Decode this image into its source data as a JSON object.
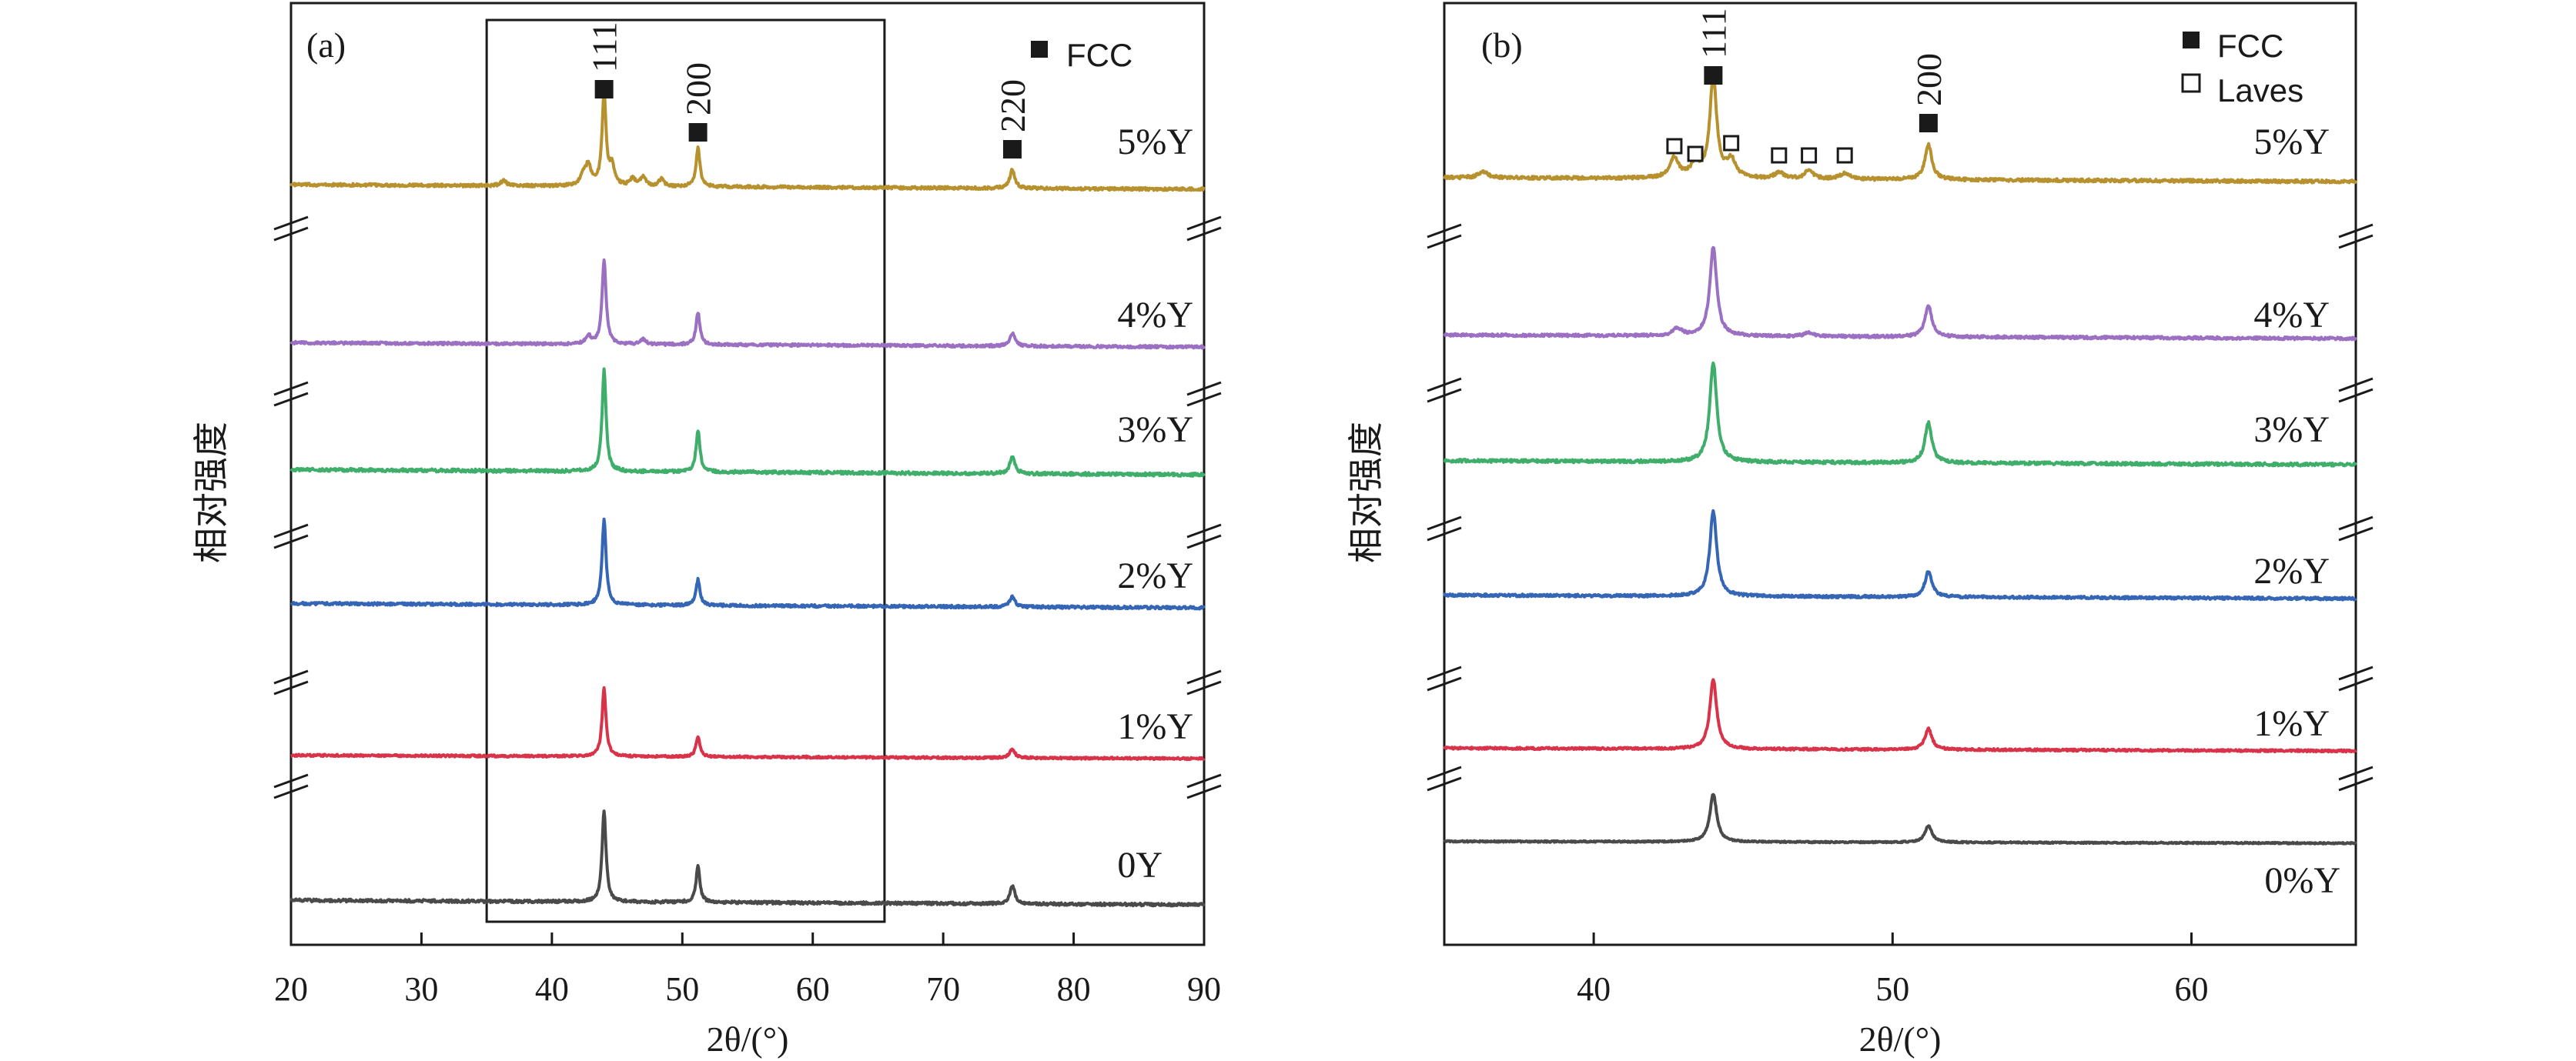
{
  "chart_data": [
    {
      "panel": "(a)",
      "type": "line",
      "xlabel": "2θ/(°)",
      "ylabel": "相对强度",
      "xlim": [
        20,
        90
      ],
      "xticks": [
        20,
        30,
        40,
        50,
        60,
        70,
        80,
        90
      ],
      "zoom_box_x": [
        35,
        65.5
      ],
      "legend": [
        {
          "marker": "filled-square",
          "label": "FCC"
        }
      ],
      "peak_annotations": [
        {
          "label": "111",
          "x": 44.0,
          "marker": "filled-square"
        },
        {
          "label": "200",
          "x": 51.2,
          "marker": "filled-square"
        },
        {
          "label": "220",
          "x": 75.3,
          "marker": "filled-square"
        }
      ],
      "series": [
        {
          "name": "5%Y",
          "color": "#b8912f",
          "peaks": [
            {
              "x": 44.0,
              "h": 1.0
            },
            {
              "x": 51.2,
              "h": 0.42
            },
            {
              "x": 75.3,
              "h": 0.2
            },
            {
              "x": 42.8,
              "h": 0.22
            },
            {
              "x": 42.4,
              "h": 0.12
            },
            {
              "x": 44.6,
              "h": 0.2
            },
            {
              "x": 46.2,
              "h": 0.08
            },
            {
              "x": 47.0,
              "h": 0.1
            },
            {
              "x": 48.4,
              "h": 0.08
            },
            {
              "x": 36.3,
              "h": 0.06
            }
          ]
        },
        {
          "name": "4%Y",
          "color": "#9b6fc2",
          "peaks": [
            {
              "x": 44.0,
              "h": 1.0
            },
            {
              "x": 51.2,
              "h": 0.38
            },
            {
              "x": 75.3,
              "h": 0.15
            },
            {
              "x": 42.8,
              "h": 0.1
            },
            {
              "x": 47.0,
              "h": 0.06
            }
          ]
        },
        {
          "name": "3%Y",
          "color": "#3fae6a",
          "peaks": [
            {
              "x": 44.0,
              "h": 1.0
            },
            {
              "x": 51.2,
              "h": 0.4
            },
            {
              "x": 75.3,
              "h": 0.17
            }
          ]
        },
        {
          "name": "2%Y",
          "color": "#3565b5",
          "peaks": [
            {
              "x": 44.0,
              "h": 1.0
            },
            {
              "x": 51.2,
              "h": 0.3
            },
            {
              "x": 75.3,
              "h": 0.12
            }
          ]
        },
        {
          "name": "1%Y",
          "color": "#d9334a",
          "peaks": [
            {
              "x": 44.0,
              "h": 1.0
            },
            {
              "x": 51.2,
              "h": 0.3
            },
            {
              "x": 75.3,
              "h": 0.13
            }
          ]
        },
        {
          "name": "0Y",
          "color": "#4a4a4a",
          "peaks": [
            {
              "x": 44.0,
              "h": 1.0
            },
            {
              "x": 51.2,
              "h": 0.4
            },
            {
              "x": 75.3,
              "h": 0.2
            }
          ]
        }
      ]
    },
    {
      "panel": "(b)",
      "type": "line",
      "xlabel": "2θ/(°)",
      "ylabel": "相对强度",
      "xlim": [
        35,
        65.5
      ],
      "xticks": [
        40,
        50,
        60
      ],
      "legend": [
        {
          "marker": "filled-square",
          "label": "FCC"
        },
        {
          "marker": "open-square",
          "label": "Laves"
        }
      ],
      "peak_annotations": [
        {
          "label": "111",
          "x": 44.0,
          "marker": "filled-square"
        },
        {
          "label": "200",
          "x": 51.2,
          "marker": "filled-square"
        },
        {
          "label": "",
          "x": 42.7,
          "marker": "open-square"
        },
        {
          "label": "",
          "x": 43.4,
          "marker": "open-square"
        },
        {
          "label": "",
          "x": 44.6,
          "marker": "open-square"
        },
        {
          "label": "",
          "x": 46.2,
          "marker": "open-square"
        },
        {
          "label": "",
          "x": 47.2,
          "marker": "open-square"
        },
        {
          "label": "",
          "x": 48.4,
          "marker": "open-square"
        }
      ],
      "series": [
        {
          "name": "5%Y",
          "color": "#b8912f",
          "peaks": [
            {
              "x": 44.0,
              "h": 1.0
            },
            {
              "x": 51.2,
              "h": 0.35
            },
            {
              "x": 42.7,
              "h": 0.2
            },
            {
              "x": 43.4,
              "h": 0.14
            },
            {
              "x": 44.6,
              "h": 0.18
            },
            {
              "x": 46.2,
              "h": 0.06
            },
            {
              "x": 47.2,
              "h": 0.08
            },
            {
              "x": 48.4,
              "h": 0.06
            },
            {
              "x": 36.3,
              "h": 0.06
            }
          ]
        },
        {
          "name": "4%Y",
          "color": "#9b6fc2",
          "peaks": [
            {
              "x": 44.0,
              "h": 1.0
            },
            {
              "x": 51.2,
              "h": 0.35
            },
            {
              "x": 42.8,
              "h": 0.08
            },
            {
              "x": 47.2,
              "h": 0.04
            }
          ]
        },
        {
          "name": "3%Y",
          "color": "#3fae6a",
          "peaks": [
            {
              "x": 44.0,
              "h": 1.0
            },
            {
              "x": 51.2,
              "h": 0.4
            }
          ]
        },
        {
          "name": "2%Y",
          "color": "#3565b5",
          "peaks": [
            {
              "x": 44.0,
              "h": 1.0
            },
            {
              "x": 51.2,
              "h": 0.3
            }
          ]
        },
        {
          "name": "1%Y",
          "color": "#d9334a",
          "peaks": [
            {
              "x": 44.0,
              "h": 1.0
            },
            {
              "x": 51.2,
              "h": 0.3
            }
          ]
        },
        {
          "name": "0%Y",
          "color": "#4a4a4a",
          "peaks": [
            {
              "x": 44.0,
              "h": 1.0
            },
            {
              "x": 51.2,
              "h": 0.35
            }
          ]
        }
      ]
    }
  ]
}
